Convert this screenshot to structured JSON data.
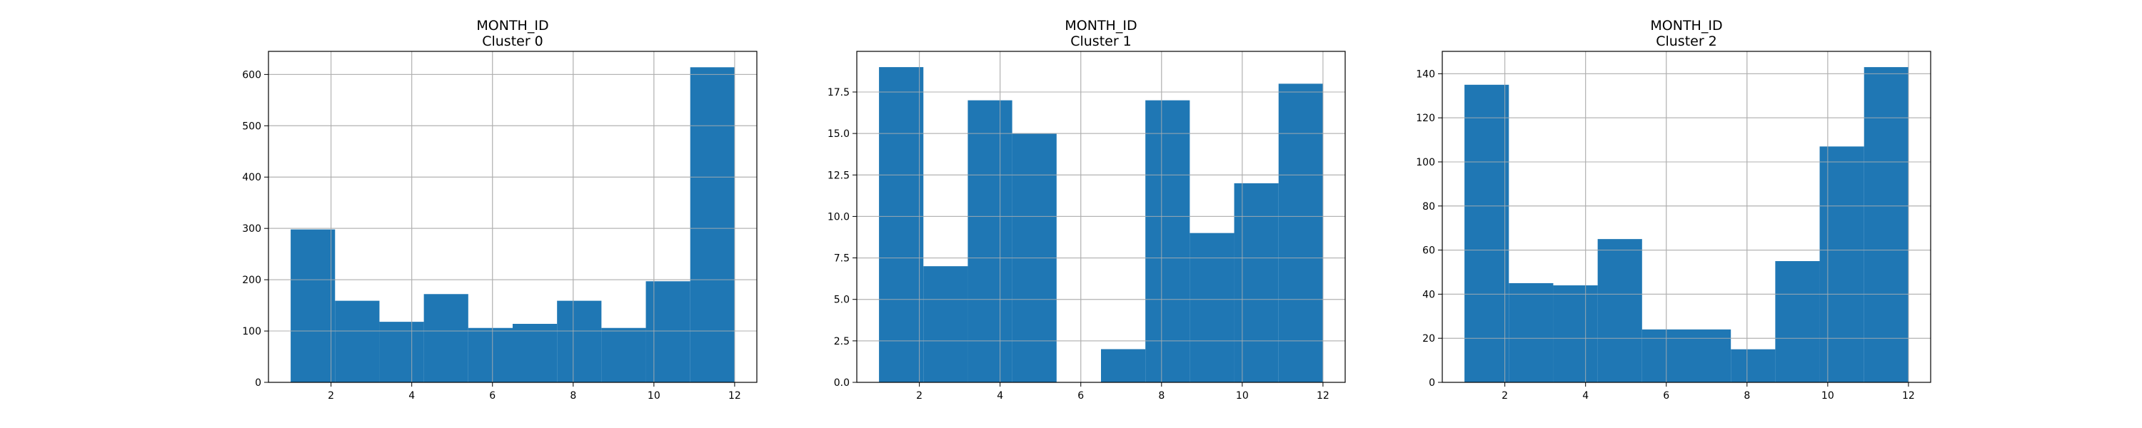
{
  "figure": {
    "bar_color": "#1f77b4",
    "grid_color": "#b0b0b0",
    "axes_color": "#000000"
  },
  "chart_data": [
    {
      "type": "bar",
      "title": "MONTH_ID",
      "subtitle": "Cluster 0",
      "xlabel": "",
      "ylabel": "",
      "grid": true,
      "xlim": [
        0.45,
        12.55
      ],
      "ylim": [
        0,
        645
      ],
      "x_ticks": [
        2,
        4,
        6,
        8,
        10,
        12
      ],
      "x_tick_labels": [
        "2",
        "4",
        "6",
        "8",
        "10",
        "12"
      ],
      "y_ticks": [
        0,
        100,
        200,
        300,
        400,
        500,
        600
      ],
      "y_tick_labels": [
        "0",
        "100",
        "200",
        "300",
        "400",
        "500",
        "600"
      ],
      "bins": [
        {
          "start": 1.0,
          "end": 2.1,
          "value": 298
        },
        {
          "start": 2.1,
          "end": 3.2,
          "value": 159
        },
        {
          "start": 3.2,
          "end": 4.3,
          "value": 118
        },
        {
          "start": 4.3,
          "end": 5.4,
          "value": 172
        },
        {
          "start": 5.4,
          "end": 6.5,
          "value": 106
        },
        {
          "start": 6.5,
          "end": 7.6,
          "value": 114
        },
        {
          "start": 7.6,
          "end": 8.7,
          "value": 159
        },
        {
          "start": 8.7,
          "end": 9.8,
          "value": 106
        },
        {
          "start": 9.8,
          "end": 10.9,
          "value": 197
        },
        {
          "start": 10.9,
          "end": 12.0,
          "value": 614
        }
      ]
    },
    {
      "type": "bar",
      "title": "MONTH_ID",
      "subtitle": "Cluster 1",
      "xlabel": "",
      "ylabel": "",
      "grid": true,
      "xlim": [
        0.45,
        12.55
      ],
      "ylim": [
        0,
        19.95
      ],
      "x_ticks": [
        2,
        4,
        6,
        8,
        10,
        12
      ],
      "x_tick_labels": [
        "2",
        "4",
        "6",
        "8",
        "10",
        "12"
      ],
      "y_ticks": [
        0,
        2.5,
        5.0,
        7.5,
        10.0,
        12.5,
        15.0,
        17.5
      ],
      "y_tick_labels": [
        "0.0",
        "2.5",
        "5.0",
        "7.5",
        "10.0",
        "12.5",
        "15.0",
        "17.5"
      ],
      "bins": [
        {
          "start": 1.0,
          "end": 2.1,
          "value": 19
        },
        {
          "start": 2.1,
          "end": 3.2,
          "value": 7
        },
        {
          "start": 3.2,
          "end": 4.3,
          "value": 17
        },
        {
          "start": 4.3,
          "end": 5.4,
          "value": 15
        },
        {
          "start": 5.4,
          "end": 6.5,
          "value": 0
        },
        {
          "start": 6.5,
          "end": 7.6,
          "value": 2
        },
        {
          "start": 7.6,
          "end": 8.7,
          "value": 17
        },
        {
          "start": 8.7,
          "end": 9.8,
          "value": 9
        },
        {
          "start": 9.8,
          "end": 10.9,
          "value": 12
        },
        {
          "start": 10.9,
          "end": 12.0,
          "value": 18
        }
      ]
    },
    {
      "type": "bar",
      "title": "MONTH_ID",
      "subtitle": "Cluster 2",
      "xlabel": "",
      "ylabel": "",
      "grid": true,
      "xlim": [
        0.45,
        12.55
      ],
      "ylim": [
        0,
        150.15
      ],
      "x_ticks": [
        2,
        4,
        6,
        8,
        10,
        12
      ],
      "x_tick_labels": [
        "2",
        "4",
        "6",
        "8",
        "10",
        "12"
      ],
      "y_ticks": [
        0,
        20,
        40,
        60,
        80,
        100,
        120,
        140
      ],
      "y_tick_labels": [
        "0",
        "20",
        "40",
        "60",
        "80",
        "100",
        "120",
        "140"
      ],
      "bins": [
        {
          "start": 1.0,
          "end": 2.1,
          "value": 135
        },
        {
          "start": 2.1,
          "end": 3.2,
          "value": 45
        },
        {
          "start": 3.2,
          "end": 4.3,
          "value": 44
        },
        {
          "start": 4.3,
          "end": 5.4,
          "value": 65
        },
        {
          "start": 5.4,
          "end": 6.5,
          "value": 24
        },
        {
          "start": 6.5,
          "end": 7.6,
          "value": 24
        },
        {
          "start": 7.6,
          "end": 8.7,
          "value": 15
        },
        {
          "start": 8.7,
          "end": 9.8,
          "value": 55
        },
        {
          "start": 9.8,
          "end": 10.9,
          "value": 107
        },
        {
          "start": 10.9,
          "end": 12.0,
          "value": 143
        }
      ]
    }
  ]
}
